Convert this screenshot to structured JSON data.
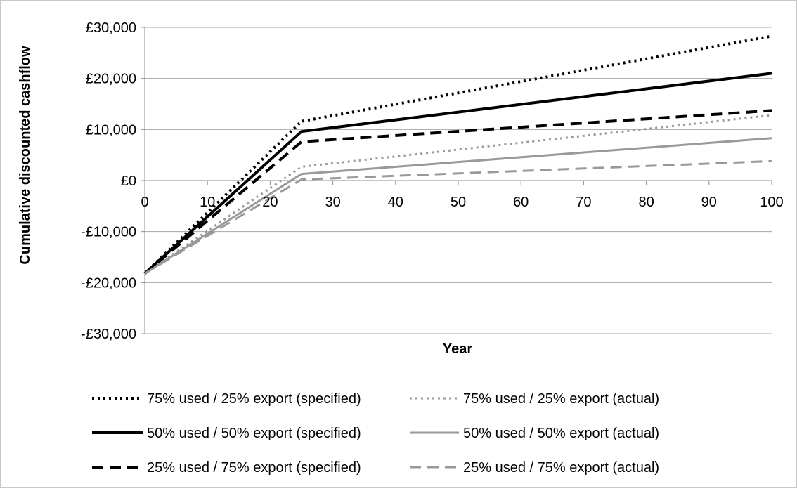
{
  "chart_data": {
    "type": "line",
    "title": "",
    "xlabel": "Year",
    "ylabel": "Cumulative discounted cashflow",
    "xlim": [
      0,
      100
    ],
    "ylim": [
      -30000,
      30000
    ],
    "x_ticks": [
      0,
      10,
      20,
      30,
      40,
      50,
      60,
      70,
      80,
      90,
      100
    ],
    "y_ticks": [
      -30000,
      -20000,
      -10000,
      0,
      10000,
      20000,
      30000
    ],
    "x_tick_labels": [
      "0",
      "10",
      "20",
      "30",
      "40",
      "50",
      "60",
      "70",
      "80",
      "90",
      "100"
    ],
    "y_tick_labels": [
      "-£30,000",
      "-£20,000",
      "-£10,000",
      "£0",
      "£10,000",
      "£20,000",
      "£30,000"
    ],
    "grid": "horizontal",
    "legend_position": "bottom",
    "series": [
      {
        "name": "75% used / 25% export (specified)",
        "color": "#000000",
        "style": "dotted",
        "x": [
          0,
          25,
          100
        ],
        "values": [
          -18200,
          11600,
          28300
        ]
      },
      {
        "name": "75% used / 25% export (actual)",
        "color": "#999999",
        "style": "dotted",
        "x": [
          0,
          25,
          100
        ],
        "values": [
          -18200,
          2700,
          12800
        ]
      },
      {
        "name": "50% used / 50% export (specified)",
        "color": "#000000",
        "style": "solid",
        "x": [
          0,
          25,
          100
        ],
        "values": [
          -18200,
          9600,
          21000
        ]
      },
      {
        "name": "50% used / 50% export (actual)",
        "color": "#999999",
        "style": "solid",
        "x": [
          0,
          25,
          100
        ],
        "values": [
          -18200,
          1300,
          8300
        ]
      },
      {
        "name": "25% used / 75% export (specified)",
        "color": "#000000",
        "style": "dashed",
        "x": [
          0,
          25,
          100
        ],
        "values": [
          -18200,
          7600,
          13700
        ]
      },
      {
        "name": "25% used / 75% export (actual)",
        "color": "#999999",
        "style": "dashed",
        "x": [
          0,
          25,
          100
        ],
        "values": [
          -18200,
          200,
          3800
        ]
      }
    ]
  }
}
